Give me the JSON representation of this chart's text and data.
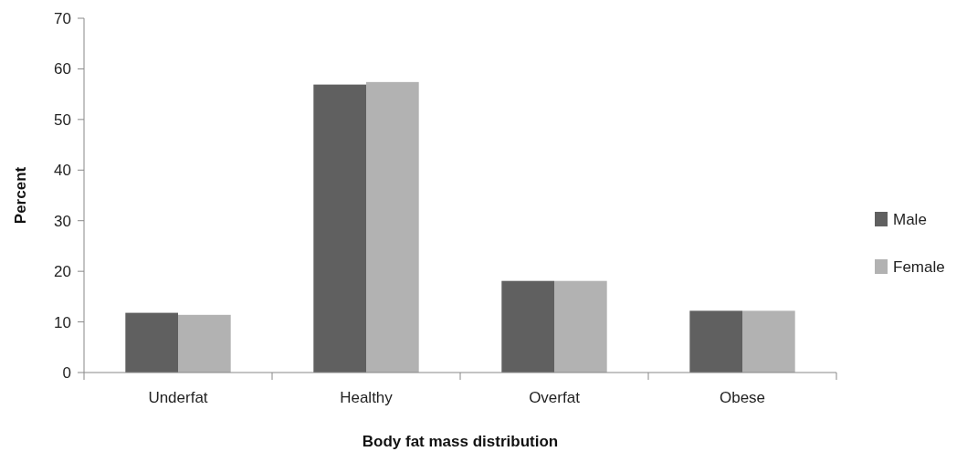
{
  "chart_data": {
    "type": "bar",
    "xlabel": "Body fat mass distribution",
    "ylabel": "Percent",
    "categories": [
      "Underfat",
      "Healthy",
      "Overfat",
      "Obese"
    ],
    "series": [
      {
        "name": "Male",
        "color": "#606060",
        "values": [
          11.8,
          56.9,
          18.1,
          12.2
        ]
      },
      {
        "name": "Female",
        "color": "#b2b2b2",
        "values": [
          11.4,
          57.4,
          18.1,
          12.2
        ]
      }
    ],
    "ylim": [
      0,
      70
    ],
    "yticks": [
      0,
      10,
      20,
      30,
      40,
      50,
      60,
      70
    ],
    "grid": false,
    "legend": "right"
  }
}
